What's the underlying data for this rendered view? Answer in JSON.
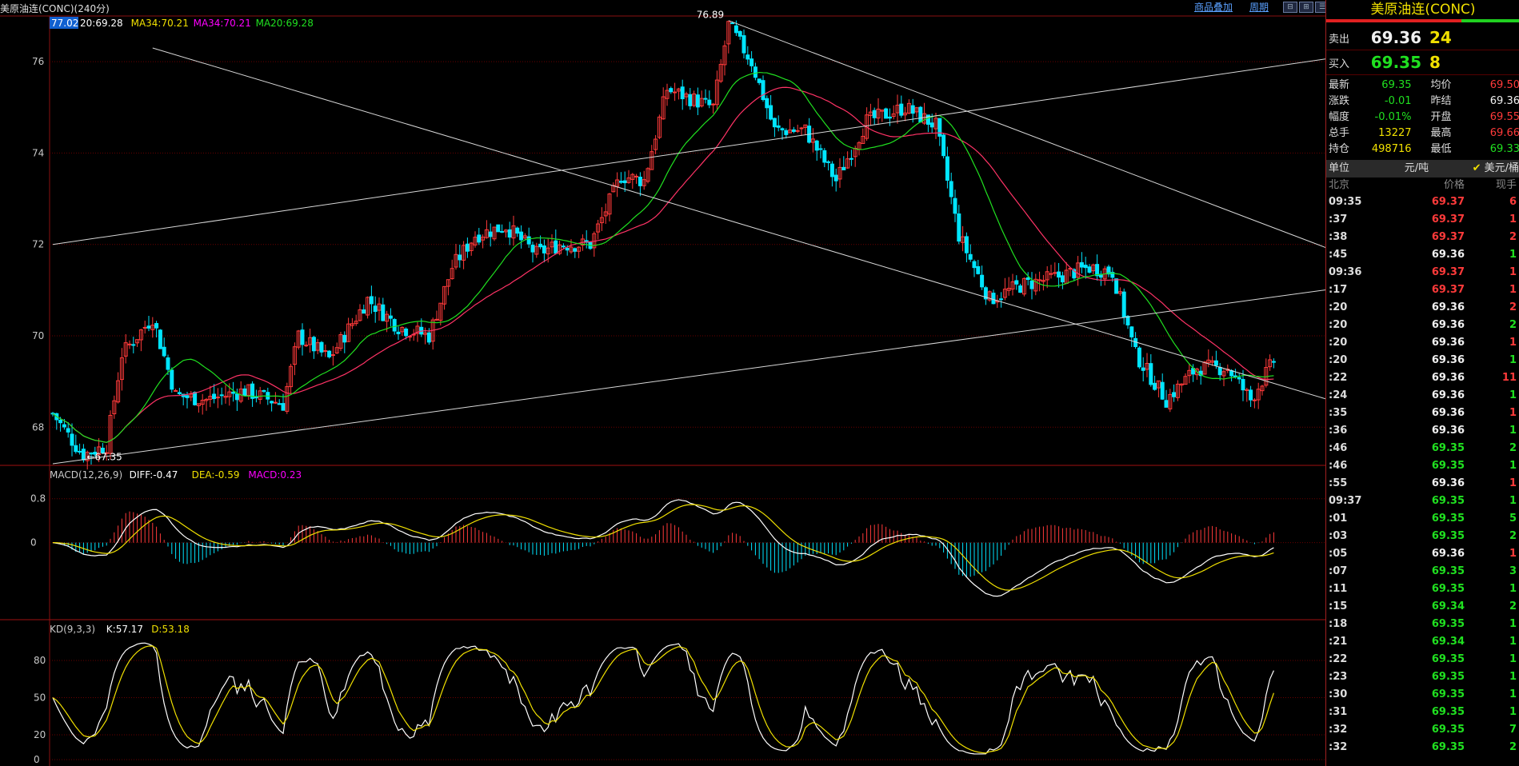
{
  "toolbar": {
    "ticker_label": "美原油连(CONC)(240分)",
    "overlay_link": "商品叠加",
    "period_link": "周期",
    "view_buttons": [
      "⊟",
      "⊞",
      "☰"
    ]
  },
  "colors": {
    "up": "#ff3a3a",
    "down": "#00e5ff",
    "ma34": "#ff3366",
    "ma20": "#20e020",
    "macd_dif": "#ffffff",
    "macd_dea": "#f0e000",
    "kd_k": "#ffffff",
    "kd_d": "#f0e000",
    "grid": "#6a0000"
  },
  "price_panel": {
    "current_value_box": "77.02",
    "legend": [
      {
        "text": "20:69.28",
        "color": "#ffffff"
      },
      {
        "text": "MA34:70.21",
        "color": "#f0e000"
      },
      {
        "text": "MA34:70.21",
        "color": "#ff00ff"
      },
      {
        "text": "MA20:69.28",
        "color": "#20e020"
      }
    ],
    "y_ticks": [
      "76",
      "74",
      "72",
      "70",
      "68"
    ],
    "high_label": "76.89",
    "low_label": "67.35"
  },
  "macd_panel": {
    "legend": [
      {
        "text": "MACD(12,26,9)",
        "color": "#c8c8c8"
      },
      {
        "text": "DIFF:-0.47",
        "color": "#ffffff"
      },
      {
        "text": "DEA:-0.59",
        "color": "#f0e000"
      },
      {
        "text": "MACD:0.23",
        "color": "#ff00ff"
      }
    ],
    "y_ticks": [
      "0.8",
      "0"
    ]
  },
  "kd_panel": {
    "legend": [
      {
        "text": "KD(9,3,3)",
        "color": "#c8c8c8"
      },
      {
        "text": "K:57.17",
        "color": "#ffffff"
      },
      {
        "text": "D:53.18",
        "color": "#f0e000"
      }
    ],
    "y_ticks": [
      "80",
      "50",
      "20",
      "0"
    ]
  },
  "quote": {
    "title": "美原油连(CONC)",
    "sell_label": "卖出",
    "sell_price": "69.36",
    "sell_vol": "24",
    "buy_label": "买入",
    "buy_price": "69.35",
    "buy_vol": "8",
    "stats": [
      {
        "k": "最新",
        "v": "69.35",
        "vc": "green",
        "k2": "均价",
        "v2": "69.50",
        "v2c": "red"
      },
      {
        "k": "涨跌",
        "v": "-0.01",
        "vc": "green",
        "k2": "昨结",
        "v2": "69.36",
        "v2c": "white"
      },
      {
        "k": "幅度",
        "v": "-0.01%",
        "vc": "green",
        "k2": "开盘",
        "v2": "69.55",
        "v2c": "red"
      },
      {
        "k": "总手",
        "v": "13227",
        "vc": "yellow",
        "k2": "最高",
        "v2": "69.66",
        "v2c": "red"
      },
      {
        "k": "持仓",
        "v": "498716",
        "vc": "yellow",
        "k2": "最低",
        "v2": "69.33",
        "v2c": "green"
      }
    ],
    "unit_label": "单位",
    "unit_a": "元/吨",
    "unit_b": "美元/桶",
    "header": {
      "c1": "北京",
      "c2": "价格",
      "c3": "现手"
    },
    "ticks": [
      {
        "t": "09:35",
        "p": "69.37",
        "pc": "red",
        "q": "6"
      },
      {
        "t": ":37",
        "p": "69.37",
        "pc": "red",
        "q": "1"
      },
      {
        "t": ":38",
        "p": "69.37",
        "pc": "red",
        "q": "2"
      },
      {
        "t": ":45",
        "p": "69.36",
        "pc": "white",
        "q": "1"
      },
      {
        "t": "09:36",
        "p": "69.37",
        "pc": "red",
        "q": "1"
      },
      {
        "t": ":17",
        "p": "69.37",
        "pc": "red",
        "q": "1"
      },
      {
        "t": ":20",
        "p": "69.36",
        "pc": "white",
        "q": "2"
      },
      {
        "t": ":20",
        "p": "69.36",
        "pc": "white",
        "q": "2"
      },
      {
        "t": ":20",
        "p": "69.36",
        "pc": "white",
        "q": "1"
      },
      {
        "t": ":20",
        "p": "69.36",
        "pc": "white",
        "q": "1"
      },
      {
        "t": ":22",
        "p": "69.36",
        "pc": "white",
        "q": "11"
      },
      {
        "t": ":24",
        "p": "69.36",
        "pc": "white",
        "q": "1"
      },
      {
        "t": ":35",
        "p": "69.36",
        "pc": "white",
        "q": "1"
      },
      {
        "t": ":36",
        "p": "69.36",
        "pc": "white",
        "q": "1"
      },
      {
        "t": ":46",
        "p": "69.35",
        "pc": "green",
        "q": "2"
      },
      {
        "t": ":46",
        "p": "69.35",
        "pc": "green",
        "q": "1"
      },
      {
        "t": ":55",
        "p": "69.36",
        "pc": "white",
        "q": "1"
      },
      {
        "t": "09:37",
        "p": "69.35",
        "pc": "green",
        "q": "1"
      },
      {
        "t": ":01",
        "p": "69.35",
        "pc": "green",
        "q": "5"
      },
      {
        "t": ":03",
        "p": "69.35",
        "pc": "green",
        "q": "2"
      },
      {
        "t": ":05",
        "p": "69.36",
        "pc": "white",
        "q": "1"
      },
      {
        "t": ":07",
        "p": "69.35",
        "pc": "green",
        "q": "3"
      },
      {
        "t": ":11",
        "p": "69.35",
        "pc": "green",
        "q": "1"
      },
      {
        "t": ":15",
        "p": "69.34",
        "pc": "green",
        "q": "2"
      },
      {
        "t": ":18",
        "p": "69.35",
        "pc": "green",
        "q": "1"
      },
      {
        "t": ":21",
        "p": "69.34",
        "pc": "green",
        "q": "1"
      },
      {
        "t": ":22",
        "p": "69.35",
        "pc": "green",
        "q": "1"
      },
      {
        "t": ":23",
        "p": "69.35",
        "pc": "green",
        "q": "1"
      },
      {
        "t": ":30",
        "p": "69.35",
        "pc": "green",
        "q": "1"
      },
      {
        "t": ":31",
        "p": "69.35",
        "pc": "green",
        "q": "1"
      },
      {
        "t": ":32",
        "p": "69.35",
        "pc": "green",
        "q": "7"
      },
      {
        "t": ":32",
        "p": "69.35",
        "pc": "green",
        "q": "2"
      }
    ]
  },
  "chart_data": {
    "type": "candlestick",
    "y_range": [
      67.2,
      77.0
    ],
    "keypoints": [
      [
        0,
        68.3
      ],
      [
        6,
        67.6
      ],
      [
        8,
        67.4
      ],
      [
        14,
        67.6
      ],
      [
        18,
        69.6
      ],
      [
        26,
        70.4
      ],
      [
        32,
        68.7
      ],
      [
        40,
        68.6
      ],
      [
        50,
        68.8
      ],
      [
        60,
        68.5
      ],
      [
        64,
        70.0
      ],
      [
        72,
        69.5
      ],
      [
        82,
        70.8
      ],
      [
        90,
        70.2
      ],
      [
        98,
        70.0
      ],
      [
        104,
        71.5
      ],
      [
        110,
        72.2
      ],
      [
        118,
        72.4
      ],
      [
        126,
        71.8
      ],
      [
        132,
        72.0
      ],
      [
        140,
        72.0
      ],
      [
        148,
        73.5
      ],
      [
        154,
        73.4
      ],
      [
        160,
        75.4
      ],
      [
        166,
        75.2
      ],
      [
        172,
        75.0
      ],
      [
        176,
        76.8
      ],
      [
        182,
        76.0
      ],
      [
        188,
        74.5
      ],
      [
        196,
        74.5
      ],
      [
        204,
        73.4
      ],
      [
        212,
        74.7
      ],
      [
        222,
        75.0
      ],
      [
        230,
        74.6
      ],
      [
        236,
        72.2
      ],
      [
        244,
        70.8
      ],
      [
        252,
        71.1
      ],
      [
        262,
        71.3
      ],
      [
        270,
        71.5
      ],
      [
        276,
        71.4
      ],
      [
        282,
        69.6
      ],
      [
        290,
        68.6
      ],
      [
        298,
        69.3
      ],
      [
        306,
        69.3
      ],
      [
        312,
        68.6
      ],
      [
        318,
        69.45
      ]
    ],
    "trend_lines": [
      {
        "from": [
          0,
          72.0
        ],
        "to": [
          392,
          76.8
        ]
      },
      {
        "from": [
          0,
          67.2
        ],
        "to": [
          392,
          71.7
        ]
      },
      {
        "from": [
          26,
          76.3
        ],
        "to": [
          392,
          67.1
        ]
      },
      {
        "from": [
          176,
          76.9
        ],
        "to": [
          392,
          70.0
        ]
      }
    ]
  }
}
